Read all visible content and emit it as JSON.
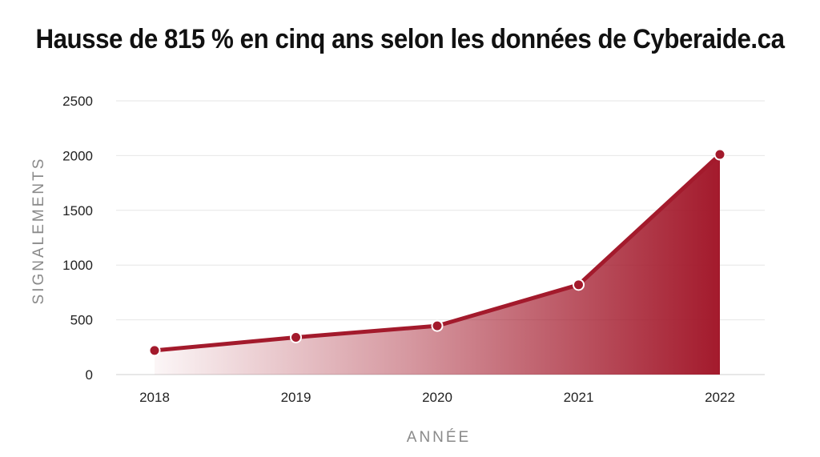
{
  "chart_data": {
    "type": "area",
    "title": "Hausse de 815 % en cinq ans selon les données de Cyberaide.ca",
    "xlabel": "ANNÉE",
    "ylabel": "SIGNALEMENTS",
    "categories": [
      "2018",
      "2019",
      "2020",
      "2021",
      "2022"
    ],
    "series": [
      {
        "values": [
          220,
          340,
          445,
          820,
          2010
        ]
      }
    ],
    "ylim": [
      0,
      2500
    ],
    "yticks": [
      0,
      500,
      1000,
      1500,
      2000,
      2500
    ],
    "grid": true,
    "colors": {
      "line": "#a31a2c",
      "fill": "#a31a2c",
      "marker_stroke": "#ffffff"
    }
  }
}
